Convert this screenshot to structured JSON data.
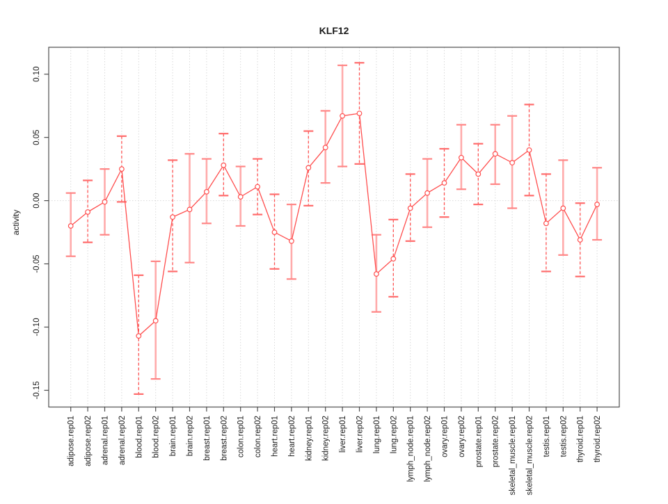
{
  "chart_data": {
    "type": "line",
    "title": "KLF12",
    "xlabel": "",
    "ylabel": "activity",
    "legend_position": "none",
    "grid": "vertical dotted gridline at every category; dotted horizontal line at y=0",
    "ylim": [
      -0.163,
      0.121
    ],
    "yticks": [
      0.1,
      0.05,
      0.0,
      -0.05,
      -0.1,
      -0.15
    ],
    "ytick_labels": [
      "0.10",
      "0.05",
      "0.00",
      "-0.05",
      "-0.10",
      "-0.15"
    ],
    "categories": [
      "adipose.rep01",
      "adipose.rep02",
      "adrenal.rep01",
      "adrenal.rep02",
      "blood.rep01",
      "blood.rep02",
      "brain.rep01",
      "brain.rep02",
      "breast.rep01",
      "breast.rep02",
      "colon.rep01",
      "colon.rep02",
      "heart.rep01",
      "heart.rep02",
      "kidney.rep01",
      "kidney.rep02",
      "liver.rep01",
      "liver.rep02",
      "lung.rep01",
      "lung.rep02",
      "lymph_node.rep01",
      "lymph_node.rep02",
      "ovary.rep01",
      "ovary.rep02",
      "prostate.rep01",
      "prostate.rep02",
      "skeletal_muscle.rep01",
      "skeletal_muscle.rep02",
      "testis.rep01",
      "testis.rep02",
      "thyroid.rep01",
      "thyroid.rep02"
    ],
    "series": [
      {
        "name": "activity",
        "values": [
          -0.02,
          -0.009,
          -0.001,
          0.025,
          -0.107,
          -0.095,
          -0.013,
          -0.007,
          0.007,
          0.028,
          0.003,
          0.011,
          -0.025,
          -0.032,
          0.026,
          0.042,
          0.067,
          0.069,
          -0.058,
          -0.046,
          -0.006,
          0.006,
          0.014,
          0.034,
          0.021,
          0.037,
          0.03,
          0.04,
          -0.018,
          -0.006,
          -0.031,
          -0.003
        ],
        "upper": [
          0.006,
          0.016,
          0.025,
          0.051,
          -0.059,
          -0.048,
          0.032,
          0.037,
          0.033,
          0.053,
          0.027,
          0.033,
          0.005,
          -0.003,
          0.055,
          0.071,
          0.107,
          0.109,
          -0.027,
          -0.015,
          0.021,
          0.033,
          0.041,
          0.06,
          0.045,
          0.06,
          0.067,
          0.076,
          0.021,
          0.032,
          -0.002,
          0.026
        ],
        "lower": [
          -0.044,
          -0.033,
          -0.027,
          -0.001,
          -0.153,
          -0.141,
          -0.056,
          -0.049,
          -0.018,
          0.004,
          -0.02,
          -0.011,
          -0.054,
          -0.062,
          -0.004,
          0.014,
          0.027,
          0.029,
          -0.088,
          -0.076,
          -0.032,
          -0.021,
          -0.013,
          0.009,
          -0.003,
          0.013,
          -0.006,
          0.004,
          -0.056,
          -0.043,
          -0.06,
          -0.031
        ],
        "error_bar_styles": [
          "solid",
          "dashed",
          "solid",
          "dashed",
          "dashed",
          "solid",
          "dashed",
          "solid",
          "solid",
          "dashed",
          "solid",
          "dashed",
          "dashed",
          "solid",
          "dashed",
          "solid",
          "solid",
          "dashed",
          "solid",
          "dashed",
          "dashed",
          "solid",
          "dashed",
          "solid",
          "dashed",
          "solid",
          "solid",
          "dashed",
          "dashed",
          "solid",
          "dashed",
          "solid"
        ]
      }
    ],
    "colors": {
      "point_and_line": "#ff4d4d",
      "error_bar_solid": "#ffabab",
      "error_bar_dashed": "#ff5252",
      "error_cap_solid": "#ff8585",
      "error_cap_dashed": "#ff6b6b",
      "gridline": "#d9d9d9",
      "axis_frame": "#4d4d4d",
      "text": "#1a1a1a"
    }
  }
}
